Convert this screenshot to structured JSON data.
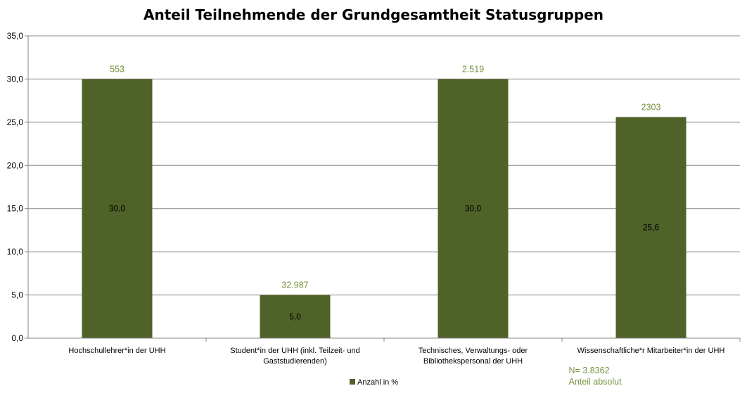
{
  "chart_data": {
    "type": "bar",
    "title": "Anteil Teilnehmende der Grundgesamtheit Statusgruppen",
    "xlabel": "",
    "ylabel": "",
    "ylim": [
      0,
      35
    ],
    "ytick_labels": [
      "0,0",
      "5,0",
      "10,0",
      "15,0",
      "20,0",
      "25,0",
      "30,0",
      "35,0"
    ],
    "grid": true,
    "legend": "bottom",
    "categories": [
      [
        "Hochschullehrer*in der UHH"
      ],
      [
        "Student*in der UHH (inkl. Teilzeit- und",
        "Gaststudierenden)"
      ],
      [
        "Technisches, Verwaltungs- oder",
        "Bibliothekspersonal der UHH"
      ],
      [
        "Wissenschaftliche*r Mitarbeiter*in der UHH"
      ]
    ],
    "series": [
      {
        "name": "Anzahl in %",
        "color": "#4f6228",
        "values": [
          30.0,
          5.0,
          30.0,
          25.6
        ],
        "value_labels": [
          "30,0",
          "5,0",
          "30,0",
          "25,6"
        ]
      }
    ],
    "annotations_absolute": [
      "553",
      "32.987",
      "2.519",
      "2303"
    ],
    "annotation_color": "#76923c",
    "footnote_lines": [
      "N= 3.8362",
      "Anteil absolut"
    ]
  }
}
